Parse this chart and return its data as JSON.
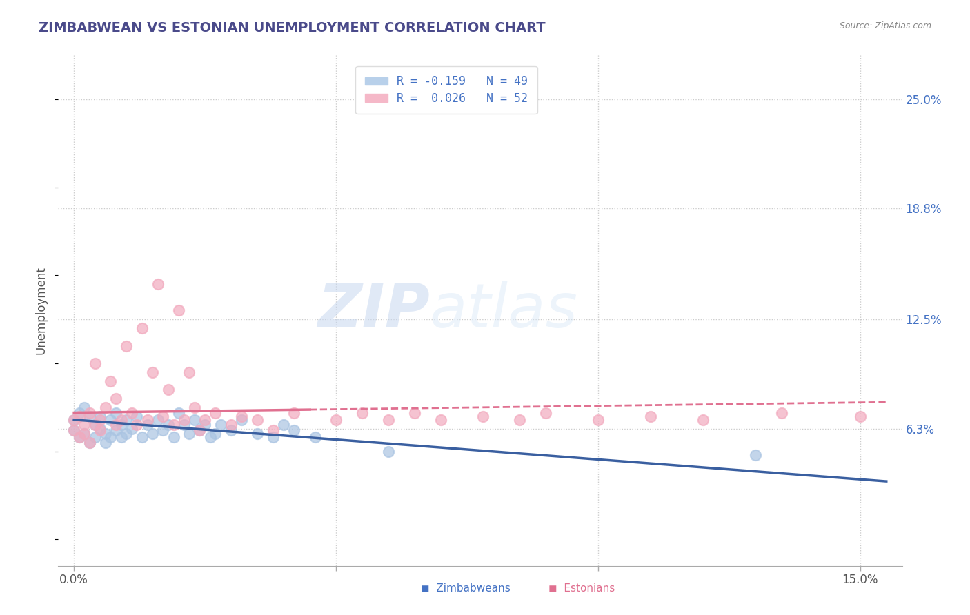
{
  "title": "ZIMBABWEAN VS ESTONIAN UNEMPLOYMENT CORRELATION CHART",
  "source": "Source: ZipAtlas.com",
  "ylabel": "Unemployment",
  "x_ticks": [
    0.0,
    0.05,
    0.1,
    0.15
  ],
  "x_tick_labels": [
    "0.0%",
    "",
    "",
    "15.0%"
  ],
  "y_tick_labels_right": [
    "6.3%",
    "12.5%",
    "18.8%",
    "25.0%"
  ],
  "y_tick_values": [
    0.063,
    0.125,
    0.188,
    0.25
  ],
  "xlim": [
    -0.003,
    0.158
  ],
  "ylim": [
    -0.015,
    0.275
  ],
  "legend_line1": "R = -0.159   N = 49",
  "legend_line2": "R =  0.026   N = 52",
  "zimbabwe_color": "#aac4e2",
  "estonia_color": "#f2aabe",
  "zimbabwe_line_color": "#3a5fa0",
  "estonia_line_color": "#e07090",
  "watermark_zip": "ZIP",
  "watermark_atlas": "atlas",
  "legend_zimbabwe_label": "Zimbabweans",
  "legend_estonia_label": "Estonians",
  "background_color": "#ffffff",
  "grid_color": "#cccccc",
  "title_color": "#4a4a8a",
  "zw_x": [
    0.0,
    0.0,
    0.001,
    0.001,
    0.002,
    0.002,
    0.003,
    0.003,
    0.004,
    0.004,
    0.005,
    0.005,
    0.006,
    0.006,
    0.007,
    0.007,
    0.008,
    0.008,
    0.009,
    0.009,
    0.01,
    0.01,
    0.011,
    0.012,
    0.013,
    0.014,
    0.015,
    0.016,
    0.017,
    0.018,
    0.019,
    0.02,
    0.021,
    0.022,
    0.023,
    0.024,
    0.025,
    0.026,
    0.027,
    0.028,
    0.03,
    0.032,
    0.035,
    0.038,
    0.04,
    0.042,
    0.046,
    0.06,
    0.13
  ],
  "zw_y": [
    0.068,
    0.062,
    0.072,
    0.058,
    0.075,
    0.06,
    0.07,
    0.055,
    0.065,
    0.058,
    0.063,
    0.07,
    0.06,
    0.055,
    0.068,
    0.058,
    0.072,
    0.062,
    0.065,
    0.058,
    0.06,
    0.068,
    0.063,
    0.07,
    0.058,
    0.065,
    0.06,
    0.068,
    0.062,
    0.065,
    0.058,
    0.072,
    0.065,
    0.06,
    0.068,
    0.062,
    0.065,
    0.058,
    0.06,
    0.065,
    0.062,
    0.068,
    0.06,
    0.058,
    0.065,
    0.062,
    0.058,
    0.05,
    0.048
  ],
  "et_x": [
    0.0,
    0.0,
    0.001,
    0.001,
    0.002,
    0.002,
    0.003,
    0.003,
    0.004,
    0.004,
    0.005,
    0.005,
    0.006,
    0.007,
    0.008,
    0.008,
    0.009,
    0.01,
    0.011,
    0.012,
    0.013,
    0.014,
    0.015,
    0.016,
    0.017,
    0.018,
    0.019,
    0.02,
    0.021,
    0.022,
    0.023,
    0.024,
    0.025,
    0.027,
    0.03,
    0.032,
    0.035,
    0.038,
    0.042,
    0.05,
    0.055,
    0.06,
    0.065,
    0.07,
    0.078,
    0.085,
    0.09,
    0.1,
    0.11,
    0.12,
    0.135,
    0.15
  ],
  "et_y": [
    0.068,
    0.062,
    0.07,
    0.058,
    0.065,
    0.06,
    0.072,
    0.055,
    0.1,
    0.065,
    0.068,
    0.062,
    0.075,
    0.09,
    0.065,
    0.08,
    0.068,
    0.11,
    0.072,
    0.065,
    0.12,
    0.068,
    0.095,
    0.145,
    0.07,
    0.085,
    0.065,
    0.13,
    0.068,
    0.095,
    0.075,
    0.062,
    0.068,
    0.072,
    0.065,
    0.07,
    0.068,
    0.062,
    0.072,
    0.068,
    0.072,
    0.068,
    0.072,
    0.068,
    0.07,
    0.068,
    0.072,
    0.068,
    0.07,
    0.068,
    0.072,
    0.07
  ]
}
